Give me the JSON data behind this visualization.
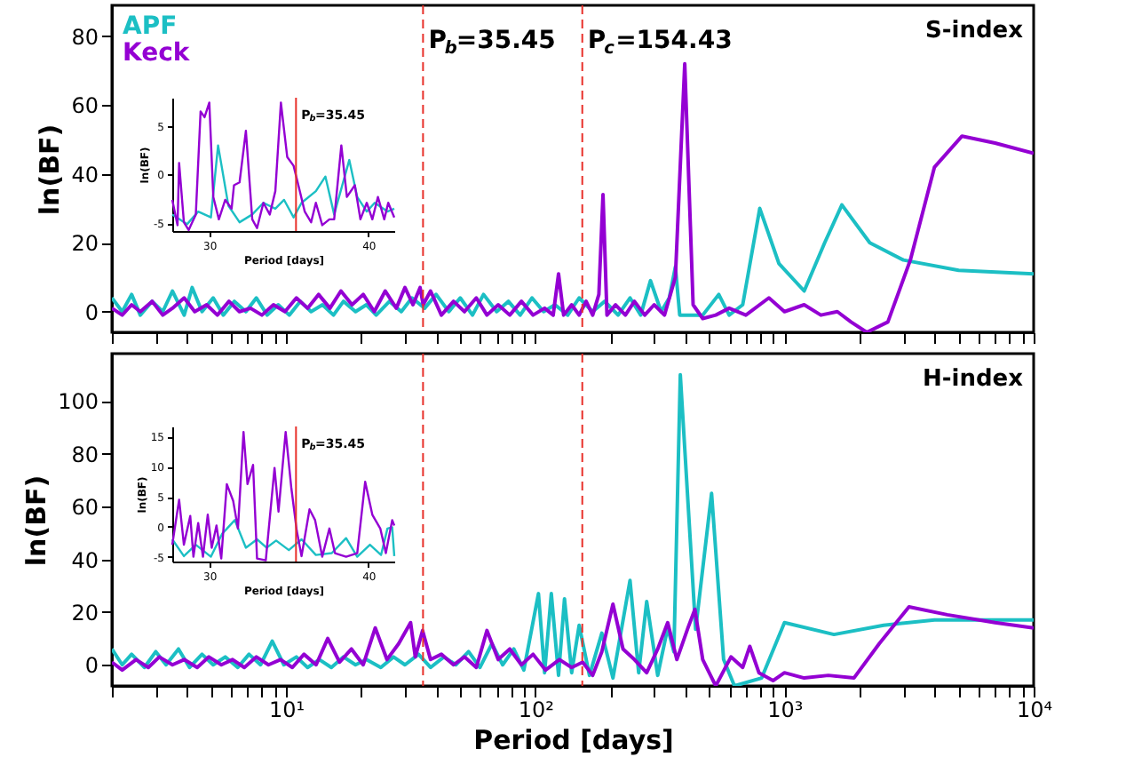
{
  "chart_data": [
    {
      "type": "line",
      "title": "S-index",
      "ylabel": "ln(BF)",
      "log": "x",
      "legend": "top left",
      "grid": false,
      "tick_labels": "y",
      "xlim": [
        2,
        10000
      ],
      "ylim": [
        -6,
        89
      ],
      "yticks": [
        0,
        20,
        40,
        60,
        80
      ],
      "xticks": [
        {
          "value": 2,
          "label": null
        },
        {
          "value": 3,
          "label": null
        },
        {
          "value": 4,
          "label": null
        },
        {
          "value": 5,
          "label": null
        },
        {
          "value": 6,
          "label": null
        },
        {
          "value": 7,
          "label": null
        },
        {
          "value": 8,
          "label": null
        },
        {
          "value": 9,
          "label": null
        },
        {
          "value": 10,
          "label": null
        },
        {
          "value": 20,
          "label": null
        },
        {
          "value": 30,
          "label": null
        },
        {
          "value": 40,
          "label": null
        },
        {
          "value": 50,
          "label": null
        },
        {
          "value": 60,
          "label": null
        },
        {
          "value": 70,
          "label": null
        },
        {
          "value": 80,
          "label": null
        },
        {
          "value": 90,
          "label": null
        },
        {
          "value": 100,
          "label": null
        },
        {
          "value": 200,
          "label": null
        },
        {
          "value": 300,
          "label": null
        },
        {
          "value": 400,
          "label": null
        },
        {
          "value": 500,
          "label": null
        },
        {
          "value": 600,
          "label": null
        },
        {
          "value": 700,
          "label": null
        },
        {
          "value": 800,
          "label": null
        },
        {
          "value": 900,
          "label": null
        },
        {
          "value": 1000,
          "label": null
        },
        {
          "value": 2000,
          "label": null
        },
        {
          "value": 3000,
          "label": null
        },
        {
          "value": 4000,
          "label": null
        },
        {
          "value": 5000,
          "label": null
        },
        {
          "value": 6000,
          "label": null
        },
        {
          "value": 7000,
          "label": null
        },
        {
          "value": 8000,
          "label": null
        },
        {
          "value": 9000,
          "label": null
        },
        {
          "value": 10000,
          "label": null
        }
      ],
      "ref_lines": [
        {
          "axis": "x",
          "value": 35.45,
          "label": "P$_{b}$=35.45",
          "color": "#e8302a",
          "line_style": "dashed"
        },
        {
          "axis": "x",
          "value": 154.43,
          "label": "P$_{c}$=154.43",
          "color": "#e8302a",
          "line_style": "dashed"
        }
      ],
      "series": [
        {
          "name": "APF",
          "color": "#1cbfc4",
          "x": [
            2,
            2.2,
            2.4,
            2.6,
            2.9,
            3.2,
            3.5,
            3.9,
            4.2,
            4.6,
            5.1,
            5.6,
            6.2,
            6.9,
            7.6,
            8.4,
            9.3,
            10.3,
            11.4,
            12.6,
            14,
            15.5,
            17,
            19,
            21,
            23,
            26,
            29,
            32,
            36,
            40,
            45,
            50,
            56,
            62,
            70,
            78,
            87,
            97,
            108,
            120,
            135,
            150,
            170,
            190,
            215,
            240,
            265,
            290,
            320,
            345,
            365,
            380,
            420,
            470,
            545,
            600,
            680,
            796,
            950,
            1200,
            1450,
            1700,
            2200,
            3000,
            5000,
            10000
          ],
          "values": [
            4,
            0,
            5,
            -1,
            3,
            0,
            6,
            -1,
            7,
            0,
            4,
            -1,
            3,
            0,
            4,
            -1,
            2,
            -1,
            3,
            0,
            2,
            -1,
            3,
            0,
            2,
            -1,
            3,
            0,
            4,
            1,
            5,
            0,
            4,
            -1,
            5,
            0,
            3,
            -1,
            4,
            0,
            2,
            -1,
            4,
            0,
            3,
            -1,
            4,
            -1,
            9,
            0,
            4,
            13,
            -1,
            -1,
            -1,
            5,
            -1,
            2,
            30,
            14,
            6,
            20,
            31,
            20,
            15,
            12,
            11
          ]
        },
        {
          "name": "Keck",
          "color": "#9400d3",
          "x": [
            2,
            2.2,
            2.4,
            2.6,
            2.9,
            3.2,
            3.5,
            3.9,
            4.3,
            4.8,
            5.3,
            5.9,
            6.5,
            7.2,
            8,
            8.9,
            9.9,
            11,
            12.2,
            13.5,
            15,
            16.6,
            18.4,
            20.4,
            22.6,
            25,
            27.7,
            30,
            32.3,
            34.5,
            35.5,
            38,
            42,
            47,
            52,
            58,
            64,
            71,
            79,
            88,
            98,
            109,
            118,
            124,
            130,
            140,
            150,
            160,
            170,
            180,
            187,
            194,
            210,
            230,
            250,
            275,
            300,
            330,
            365,
            398,
            430,
            470,
            530,
            600,
            700,
            866,
            1000,
            1200,
            1400,
            1630,
            1850,
            2140,
            2600,
            3200,
            4000,
            5160,
            7000,
            10000
          ],
          "values": [
            1,
            -1,
            2,
            0,
            3,
            -1,
            1,
            4,
            0,
            2,
            -1,
            3,
            0,
            1,
            -1,
            2,
            0,
            4,
            1,
            5,
            1,
            6,
            2,
            5,
            0,
            6,
            1,
            7,
            2,
            7,
            2,
            6,
            -1,
            3,
            0,
            4,
            -1,
            2,
            -1,
            3,
            -1,
            1,
            -1,
            11,
            -1,
            2,
            -1,
            3,
            -1,
            5,
            34,
            -1,
            2,
            -1,
            3,
            -1,
            2,
            -1,
            10,
            72,
            2,
            -2,
            -1,
            1,
            -1,
            4,
            0,
            2,
            -1,
            0,
            -3,
            -6,
            -3,
            15,
            42,
            51,
            49,
            46
          ]
        }
      ]
    },
    {
      "type": "line",
      "xlabel": "Period [days]",
      "ylabel": "ln(BF)",
      "grid": false,
      "xlim": [
        27.67,
        41.63
      ],
      "ylim": [
        -5.8,
        7.9
      ],
      "xticks": [
        30,
        40
      ],
      "yticks": [
        -5,
        0,
        5
      ],
      "ref_lines": [
        {
          "axis": "x",
          "value": 35.45,
          "label": "P$_{b}$=35.45",
          "color": "#e8302a",
          "line_style": "solid"
        }
      ],
      "series": [
        {
          "color": "#1cbfc4",
          "x": [
            27.67,
            28.6,
            29.3,
            30.1,
            30.55,
            31.2,
            31.9,
            32.7,
            33.4,
            34.15,
            34.7,
            35.3,
            35.8,
            36.7,
            37.3,
            37.85,
            38.8,
            39.3,
            39.9,
            40.4,
            41.2,
            41.63
          ],
          "values": [
            -4.1,
            -5.1,
            -3.8,
            -4.4,
            3.0,
            -3.2,
            -4.9,
            -4.1,
            -2.9,
            -3.5,
            -2.6,
            -4.4,
            -2.9,
            -1.7,
            -0.2,
            -4.1,
            1.5,
            -2.3,
            -3.8,
            -2.9,
            -3.8,
            -3.5
          ]
        },
        {
          "color": "#9400d3",
          "x": [
            27.67,
            28.0,
            28.1,
            28.4,
            28.7,
            29.15,
            29.45,
            29.7,
            30.0,
            30.25,
            30.6,
            31.0,
            31.4,
            31.55,
            31.9,
            32.3,
            32.7,
            33.0,
            33.4,
            33.8,
            34.15,
            34.5,
            34.9,
            35.3,
            35.6,
            36.0,
            36.4,
            36.7,
            37.1,
            37.55,
            37.85,
            38.3,
            38.65,
            39.15,
            39.5,
            39.9,
            40.25,
            40.6,
            41.0,
            41.25,
            41.63
          ],
          "values": [
            -2.6,
            -5.2,
            1.2,
            -4.9,
            -5.7,
            -4.1,
            6.5,
            5.9,
            7.4,
            -2.3,
            -4.6,
            -2.6,
            -3.5,
            -1.1,
            -0.8,
            4.5,
            -4.6,
            -5.5,
            -2.9,
            -4.1,
            -1.7,
            7.4,
            1.8,
            0.9,
            -1.1,
            -3.8,
            -4.9,
            -2.9,
            -5.2,
            -4.6,
            -4.6,
            3.0,
            -2.3,
            -1.1,
            -4.6,
            -2.9,
            -4.6,
            -2.3,
            -4.6,
            -2.9,
            -4.4
          ]
        }
      ]
    },
    {
      "type": "line",
      "title": "H-index",
      "xlabel": "Period [days]",
      "ylabel": "ln(BF)",
      "log": "x",
      "grid": false,
      "xlim": [
        2,
        10000
      ],
      "ylim": [
        -8,
        118
      ],
      "yticks": [
        0,
        20,
        40,
        60,
        80,
        100
      ],
      "xticks": [
        {
          "value": 2,
          "label": null
        },
        {
          "value": 3,
          "label": null
        },
        {
          "value": 4,
          "label": null
        },
        {
          "value": 5,
          "label": null
        },
        {
          "value": 6,
          "label": null
        },
        {
          "value": 7,
          "label": null
        },
        {
          "value": 8,
          "label": null
        },
        {
          "value": 9,
          "label": null
        },
        {
          "value": 10,
          "label": "10¹"
        },
        {
          "value": 20,
          "label": null
        },
        {
          "value": 30,
          "label": null
        },
        {
          "value": 40,
          "label": null
        },
        {
          "value": 50,
          "label": null
        },
        {
          "value": 60,
          "label": null
        },
        {
          "value": 70,
          "label": null
        },
        {
          "value": 80,
          "label": null
        },
        {
          "value": 90,
          "label": null
        },
        {
          "value": 100,
          "label": "10²"
        },
        {
          "value": 200,
          "label": null
        },
        {
          "value": 300,
          "label": null
        },
        {
          "value": 400,
          "label": null
        },
        {
          "value": 500,
          "label": null
        },
        {
          "value": 600,
          "label": null
        },
        {
          "value": 700,
          "label": null
        },
        {
          "value": 800,
          "label": null
        },
        {
          "value": 900,
          "label": null
        },
        {
          "value": 1000,
          "label": "10³"
        },
        {
          "value": 2000,
          "label": null
        },
        {
          "value": 3000,
          "label": null
        },
        {
          "value": 4000,
          "label": null
        },
        {
          "value": 5000,
          "label": null
        },
        {
          "value": 6000,
          "label": null
        },
        {
          "value": 7000,
          "label": null
        },
        {
          "value": 8000,
          "label": null
        },
        {
          "value": 9000,
          "label": null
        },
        {
          "value": 10000,
          "label": "10⁴"
        }
      ],
      "ref_lines": [
        {
          "axis": "x",
          "value": 35.45,
          "color": "#e8302a",
          "line_style": "dashed"
        },
        {
          "axis": "x",
          "value": 154.43,
          "color": "#e8302a",
          "line_style": "dashed"
        }
      ],
      "series": [
        {
          "color": "#1cbfc4",
          "x": [
            2,
            2.2,
            2.4,
            2.7,
            3,
            3.3,
            3.7,
            4.1,
            4.6,
            5.1,
            5.7,
            6.4,
            7.1,
            7.9,
            8.8,
            9.8,
            11,
            12.2,
            13.6,
            15.2,
            17,
            19,
            21,
            24,
            27,
            30,
            34,
            38,
            43,
            48,
            54,
            60,
            67,
            74,
            82,
            90,
            103,
            109,
            116,
            124,
            131,
            140,
            150,
            165,
            185,
            205,
            240,
            260,
            280,
            310,
            340,
            360,
            382,
            440,
            510,
            570,
            630,
            810,
            1000,
            1580,
            2500,
            4000,
            10000
          ],
          "values": [
            6,
            0,
            4,
            -1,
            5,
            0,
            6,
            -1,
            4,
            0,
            3,
            -1,
            4,
            0,
            9,
            0,
            3,
            -1,
            2,
            -1,
            3,
            0,
            2,
            -1,
            3,
            0,
            4,
            -1,
            3,
            0,
            5,
            -1,
            8,
            0,
            6,
            -2,
            27,
            -3,
            27,
            -4,
            25,
            -3,
            15,
            -4,
            12,
            -5,
            32,
            -3,
            24,
            -4,
            14,
            5,
            110,
            13.5,
            65,
            2,
            -8,
            -5,
            16,
            11.5,
            15,
            17,
            17
          ]
        },
        {
          "color": "#9400d3",
          "x": [
            2,
            2.2,
            2.5,
            2.8,
            3.1,
            3.5,
            3.9,
            4.4,
            4.9,
            5.5,
            6.1,
            6.8,
            7.6,
            8.5,
            9.5,
            10.6,
            11.8,
            13.2,
            14.7,
            16.4,
            18.3,
            20.4,
            22.8,
            25.4,
            28.3,
            31.6,
            33,
            35.3,
            38,
            42,
            47,
            52,
            58,
            64,
            71,
            79,
            88,
            98,
            110,
            125,
            140,
            155,
            170,
            185,
            205,
            225,
            250,
            280,
            310,
            340,
            370,
            410,
            437,
            470,
            530,
            610,
            680,
            726,
            790,
            900,
            1000,
            1200,
            1500,
            1900,
            2400,
            3160,
            4500,
            7000,
            10000
          ],
          "values": [
            1,
            -2,
            2,
            -1,
            3,
            0,
            2,
            -1,
            3,
            0,
            2,
            -1,
            3,
            0,
            2,
            -1,
            4,
            0,
            10,
            1,
            6,
            0,
            14,
            2,
            8,
            16,
            3,
            13,
            2,
            4,
            0,
            3,
            -1,
            13,
            2,
            6,
            0,
            4,
            -2,
            2,
            -1,
            1,
            -4,
            5,
            23,
            6,
            2,
            -3,
            6,
            16,
            2,
            14,
            21,
            2,
            -8,
            3,
            -1,
            7,
            -3,
            -6,
            -3,
            -5,
            -4,
            -5,
            8,
            22,
            19,
            16,
            14
          ]
        }
      ]
    },
    {
      "type": "line",
      "xlabel": "Period [days]",
      "ylabel": "ln(BF)",
      "grid": false,
      "xlim": [
        27.67,
        41.63
      ],
      "ylim": [
        -5.8,
        16.7
      ],
      "xticks": [
        30,
        40
      ],
      "yticks": [
        -5,
        0,
        5,
        10,
        15
      ],
      "ref_lines": [
        {
          "axis": "x",
          "value": 35.45,
          "label": "P$_{b}$=35.45",
          "color": "#e8302a",
          "line_style": "solid"
        }
      ],
      "series": [
        {
          "color": "#1cbfc4",
          "x": [
            27.67,
            28.4,
            29.15,
            30.1,
            30.8,
            31.6,
            32.3,
            33.0,
            33.6,
            34.2,
            35.0,
            35.8,
            36.7,
            37.7,
            38.6,
            39.3,
            40.1,
            40.8,
            41.2,
            41.5,
            41.63
          ],
          "values": [
            -2.1,
            -4.9,
            -3.0,
            -5,
            -1.2,
            1.1,
            -3.5,
            -2.1,
            -3.5,
            -2.3,
            -3.9,
            -2.1,
            -4.7,
            -4.4,
            -1.9,
            -5,
            -3,
            -4.7,
            -0.3,
            -0.1,
            -4.9
          ]
        },
        {
          "color": "#9400d3",
          "x": [
            27.67,
            28.1,
            28.4,
            28.8,
            29.0,
            29.3,
            29.6,
            29.9,
            30.15,
            30.45,
            30.75,
            31.1,
            31.5,
            31.8,
            32.15,
            32.4,
            32.75,
            33.0,
            33.55,
            34.1,
            34.35,
            34.8,
            35.15,
            35.5,
            35.8,
            36.3,
            36.65,
            37.1,
            37.55,
            37.9,
            38.6,
            39.3,
            39.8,
            40.25,
            40.75,
            41.1,
            41.5,
            41.63
          ],
          "values": [
            -3.0,
            4.5,
            -3,
            1.8,
            -5,
            0.6,
            -5,
            2.0,
            -3.5,
            0.2,
            -5.3,
            7.1,
            4.3,
            -0.3,
            15.8,
            7.1,
            10.3,
            -5.3,
            -5.6,
            9.8,
            2.5,
            15.8,
            6.6,
            -0.7,
            -4.9,
            2.9,
            1.1,
            -5,
            -0.3,
            -4.4,
            -5,
            -4.4,
            7.5,
            2.0,
            -0.3,
            -4.4,
            1.1,
            0.2
          ]
        }
      ]
    }
  ]
}
